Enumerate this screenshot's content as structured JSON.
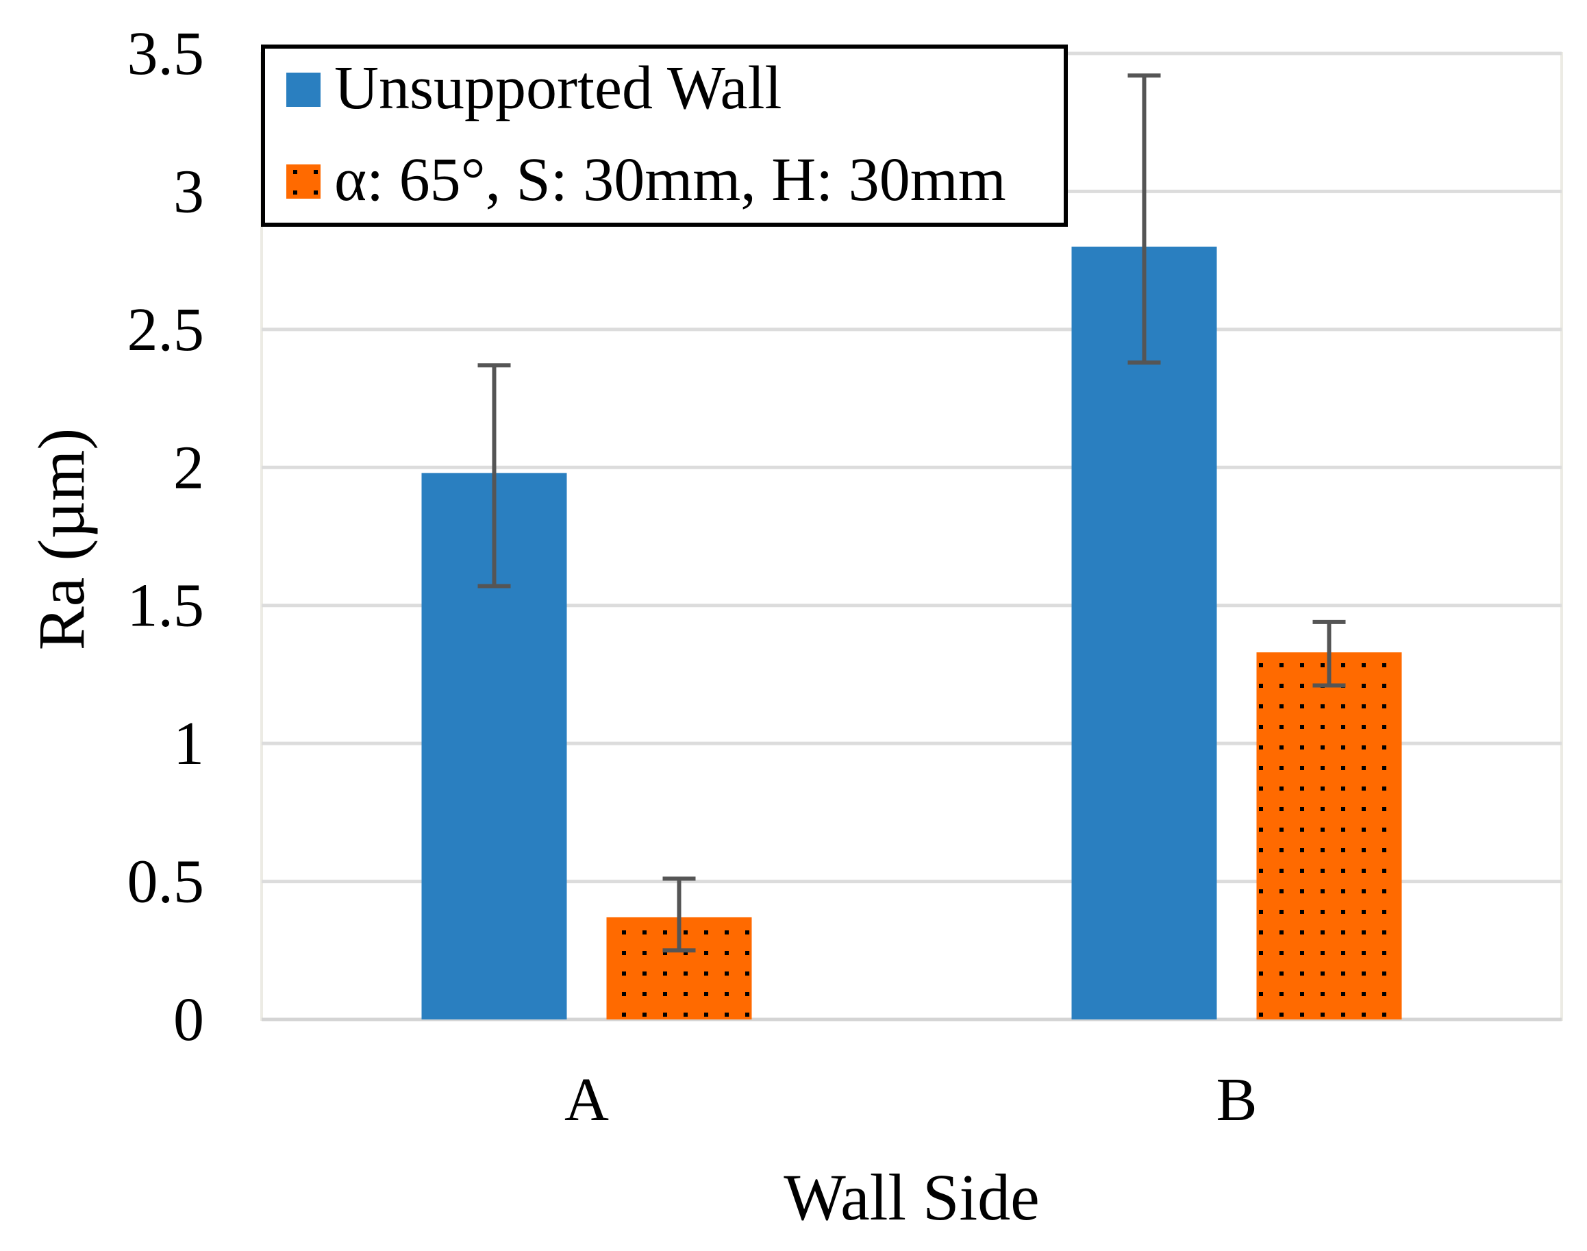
{
  "chart_data": {
    "type": "bar",
    "title": "",
    "xlabel": "Wall Side",
    "ylabel": "Ra (µm)",
    "categories": [
      "A",
      "B"
    ],
    "ylim": [
      0,
      3.5
    ],
    "yticks": [
      0,
      0.5,
      1,
      1.5,
      2,
      2.5,
      3,
      3.5
    ],
    "ytick_labels": [
      "0",
      "0.5",
      "1",
      "1.5",
      "2",
      "2.5",
      "3",
      "3.5"
    ],
    "grid": true,
    "legend_position": "top-left",
    "series": [
      {
        "name": "Unsupported Wall",
        "values": [
          1.98,
          2.8
        ],
        "error_low": [
          1.57,
          2.38
        ],
        "error_high": [
          2.37,
          3.42
        ],
        "color": "#2a7fc0",
        "pattern": "solid"
      },
      {
        "name": "α: 65°, S: 30mm, H: 30mm",
        "values": [
          0.37,
          1.33
        ],
        "error_low": [
          0.25,
          1.21
        ],
        "error_high": [
          0.51,
          1.44
        ],
        "color": "#ff6a00",
        "pattern": "dotted"
      }
    ]
  }
}
